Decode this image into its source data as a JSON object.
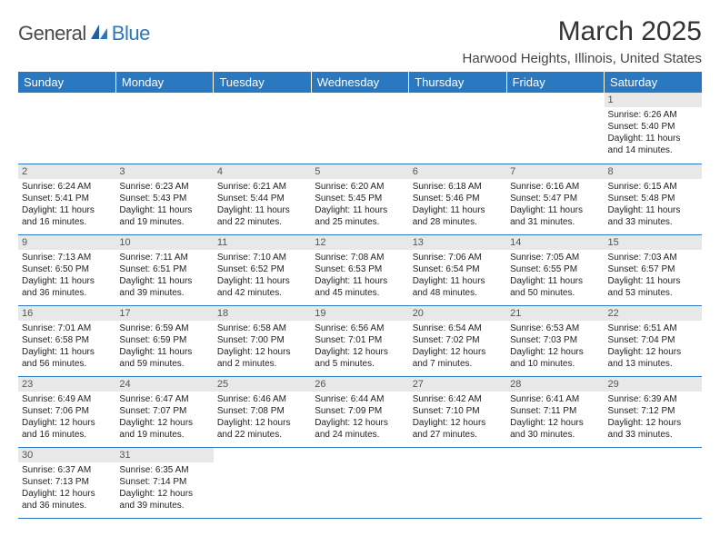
{
  "logo": {
    "general": "General",
    "blue": "Blue"
  },
  "header": {
    "title": "March 2025",
    "location": "Harwood Heights, Illinois, United States"
  },
  "colors": {
    "header_bg": "#2a78bf",
    "header_text": "#ffffff",
    "daynum_bg": "#e8e8e8",
    "daynum_text": "#555555",
    "border": "#2a78bf",
    "logo_gray": "#4a4a4a",
    "logo_blue": "#2a78bf"
  },
  "typography": {
    "title_fontsize": 30,
    "location_fontsize": 15,
    "dayheader_fontsize": 13,
    "cell_fontsize": 10,
    "daynum_fontsize": 11
  },
  "days_of_week": [
    "Sunday",
    "Monday",
    "Tuesday",
    "Wednesday",
    "Thursday",
    "Friday",
    "Saturday"
  ],
  "weeks": [
    [
      null,
      null,
      null,
      null,
      null,
      null,
      {
        "n": "1",
        "sunrise": "Sunrise: 6:26 AM",
        "sunset": "Sunset: 5:40 PM",
        "daylight1": "Daylight: 11 hours",
        "daylight2": "and 14 minutes."
      }
    ],
    [
      {
        "n": "2",
        "sunrise": "Sunrise: 6:24 AM",
        "sunset": "Sunset: 5:41 PM",
        "daylight1": "Daylight: 11 hours",
        "daylight2": "and 16 minutes."
      },
      {
        "n": "3",
        "sunrise": "Sunrise: 6:23 AM",
        "sunset": "Sunset: 5:43 PM",
        "daylight1": "Daylight: 11 hours",
        "daylight2": "and 19 minutes."
      },
      {
        "n": "4",
        "sunrise": "Sunrise: 6:21 AM",
        "sunset": "Sunset: 5:44 PM",
        "daylight1": "Daylight: 11 hours",
        "daylight2": "and 22 minutes."
      },
      {
        "n": "5",
        "sunrise": "Sunrise: 6:20 AM",
        "sunset": "Sunset: 5:45 PM",
        "daylight1": "Daylight: 11 hours",
        "daylight2": "and 25 minutes."
      },
      {
        "n": "6",
        "sunrise": "Sunrise: 6:18 AM",
        "sunset": "Sunset: 5:46 PM",
        "daylight1": "Daylight: 11 hours",
        "daylight2": "and 28 minutes."
      },
      {
        "n": "7",
        "sunrise": "Sunrise: 6:16 AM",
        "sunset": "Sunset: 5:47 PM",
        "daylight1": "Daylight: 11 hours",
        "daylight2": "and 31 minutes."
      },
      {
        "n": "8",
        "sunrise": "Sunrise: 6:15 AM",
        "sunset": "Sunset: 5:48 PM",
        "daylight1": "Daylight: 11 hours",
        "daylight2": "and 33 minutes."
      }
    ],
    [
      {
        "n": "9",
        "sunrise": "Sunrise: 7:13 AM",
        "sunset": "Sunset: 6:50 PM",
        "daylight1": "Daylight: 11 hours",
        "daylight2": "and 36 minutes."
      },
      {
        "n": "10",
        "sunrise": "Sunrise: 7:11 AM",
        "sunset": "Sunset: 6:51 PM",
        "daylight1": "Daylight: 11 hours",
        "daylight2": "and 39 minutes."
      },
      {
        "n": "11",
        "sunrise": "Sunrise: 7:10 AM",
        "sunset": "Sunset: 6:52 PM",
        "daylight1": "Daylight: 11 hours",
        "daylight2": "and 42 minutes."
      },
      {
        "n": "12",
        "sunrise": "Sunrise: 7:08 AM",
        "sunset": "Sunset: 6:53 PM",
        "daylight1": "Daylight: 11 hours",
        "daylight2": "and 45 minutes."
      },
      {
        "n": "13",
        "sunrise": "Sunrise: 7:06 AM",
        "sunset": "Sunset: 6:54 PM",
        "daylight1": "Daylight: 11 hours",
        "daylight2": "and 48 minutes."
      },
      {
        "n": "14",
        "sunrise": "Sunrise: 7:05 AM",
        "sunset": "Sunset: 6:55 PM",
        "daylight1": "Daylight: 11 hours",
        "daylight2": "and 50 minutes."
      },
      {
        "n": "15",
        "sunrise": "Sunrise: 7:03 AM",
        "sunset": "Sunset: 6:57 PM",
        "daylight1": "Daylight: 11 hours",
        "daylight2": "and 53 minutes."
      }
    ],
    [
      {
        "n": "16",
        "sunrise": "Sunrise: 7:01 AM",
        "sunset": "Sunset: 6:58 PM",
        "daylight1": "Daylight: 11 hours",
        "daylight2": "and 56 minutes."
      },
      {
        "n": "17",
        "sunrise": "Sunrise: 6:59 AM",
        "sunset": "Sunset: 6:59 PM",
        "daylight1": "Daylight: 11 hours",
        "daylight2": "and 59 minutes."
      },
      {
        "n": "18",
        "sunrise": "Sunrise: 6:58 AM",
        "sunset": "Sunset: 7:00 PM",
        "daylight1": "Daylight: 12 hours",
        "daylight2": "and 2 minutes."
      },
      {
        "n": "19",
        "sunrise": "Sunrise: 6:56 AM",
        "sunset": "Sunset: 7:01 PM",
        "daylight1": "Daylight: 12 hours",
        "daylight2": "and 5 minutes."
      },
      {
        "n": "20",
        "sunrise": "Sunrise: 6:54 AM",
        "sunset": "Sunset: 7:02 PM",
        "daylight1": "Daylight: 12 hours",
        "daylight2": "and 7 minutes."
      },
      {
        "n": "21",
        "sunrise": "Sunrise: 6:53 AM",
        "sunset": "Sunset: 7:03 PM",
        "daylight1": "Daylight: 12 hours",
        "daylight2": "and 10 minutes."
      },
      {
        "n": "22",
        "sunrise": "Sunrise: 6:51 AM",
        "sunset": "Sunset: 7:04 PM",
        "daylight1": "Daylight: 12 hours",
        "daylight2": "and 13 minutes."
      }
    ],
    [
      {
        "n": "23",
        "sunrise": "Sunrise: 6:49 AM",
        "sunset": "Sunset: 7:06 PM",
        "daylight1": "Daylight: 12 hours",
        "daylight2": "and 16 minutes."
      },
      {
        "n": "24",
        "sunrise": "Sunrise: 6:47 AM",
        "sunset": "Sunset: 7:07 PM",
        "daylight1": "Daylight: 12 hours",
        "daylight2": "and 19 minutes."
      },
      {
        "n": "25",
        "sunrise": "Sunrise: 6:46 AM",
        "sunset": "Sunset: 7:08 PM",
        "daylight1": "Daylight: 12 hours",
        "daylight2": "and 22 minutes."
      },
      {
        "n": "26",
        "sunrise": "Sunrise: 6:44 AM",
        "sunset": "Sunset: 7:09 PM",
        "daylight1": "Daylight: 12 hours",
        "daylight2": "and 24 minutes."
      },
      {
        "n": "27",
        "sunrise": "Sunrise: 6:42 AM",
        "sunset": "Sunset: 7:10 PM",
        "daylight1": "Daylight: 12 hours",
        "daylight2": "and 27 minutes."
      },
      {
        "n": "28",
        "sunrise": "Sunrise: 6:41 AM",
        "sunset": "Sunset: 7:11 PM",
        "daylight1": "Daylight: 12 hours",
        "daylight2": "and 30 minutes."
      },
      {
        "n": "29",
        "sunrise": "Sunrise: 6:39 AM",
        "sunset": "Sunset: 7:12 PM",
        "daylight1": "Daylight: 12 hours",
        "daylight2": "and 33 minutes."
      }
    ],
    [
      {
        "n": "30",
        "sunrise": "Sunrise: 6:37 AM",
        "sunset": "Sunset: 7:13 PM",
        "daylight1": "Daylight: 12 hours",
        "daylight2": "and 36 minutes."
      },
      {
        "n": "31",
        "sunrise": "Sunrise: 6:35 AM",
        "sunset": "Sunset: 7:14 PM",
        "daylight1": "Daylight: 12 hours",
        "daylight2": "and 39 minutes."
      },
      null,
      null,
      null,
      null,
      null
    ]
  ]
}
